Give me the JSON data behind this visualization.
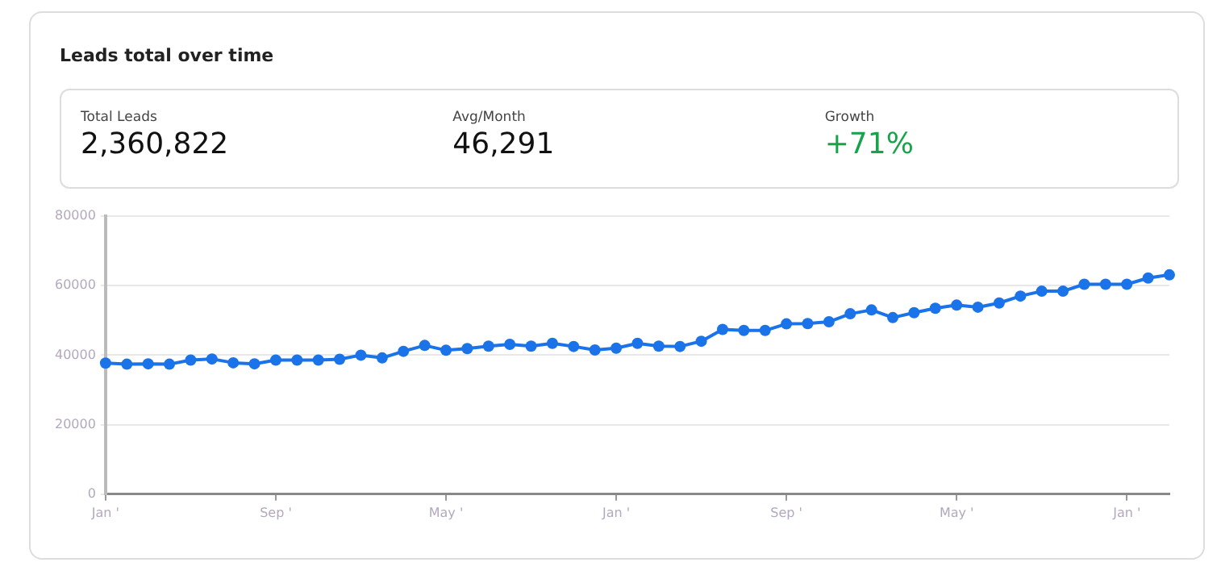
{
  "chart_data": {
    "type": "line",
    "title": "Leads total over time",
    "annotations": [
      "Total Leads",
      "2,360,822",
      "Avg/Month",
      "46,291",
      "Growth",
      "+71%"
    ],
    "categories": [
      "Jan '",
      null,
      null,
      null,
      null,
      null,
      null,
      null,
      "Sep '",
      null,
      null,
      null,
      null,
      null,
      null,
      null,
      "May '",
      null,
      null,
      null,
      null,
      null,
      null,
      null,
      "Jan '",
      null,
      null,
      null,
      null,
      null,
      null,
      null,
      "Sep '",
      null,
      null,
      null,
      null,
      null,
      null,
      null,
      "May '",
      null,
      null,
      null,
      null,
      null,
      null,
      null,
      "Jan '",
      null,
      null
    ],
    "series": [
      {
        "color": "#1a73e8",
        "values": [
          37700,
          37400,
          37500,
          37400,
          38600,
          38900,
          37800,
          37500,
          38600,
          38600,
          38600,
          38800,
          40000,
          39200,
          41100,
          42800,
          41400,
          41900,
          42600,
          43100,
          42600,
          43400,
          42500,
          41500,
          42000,
          43400,
          42600,
          42500,
          44000,
          47400,
          47100,
          47100,
          49000,
          49100,
          49600,
          51900,
          53000,
          50800,
          52200,
          53500,
          54400,
          53800,
          55000,
          57000,
          58400,
          58400,
          60400,
          60400,
          60400,
          62200,
          63100
        ]
      }
    ],
    "ylim": [
      0,
      80000
    ],
    "yticks": [
      0,
      20000,
      40000,
      60000,
      80000
    ],
    "grid": "y",
    "legend": false,
    "marker": "circle",
    "line_style": "solid"
  }
}
